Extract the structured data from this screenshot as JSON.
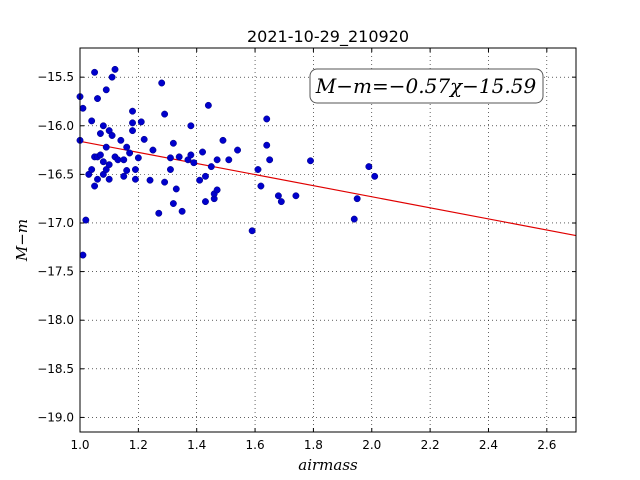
{
  "chart_data": {
    "type": "scatter",
    "title": "2021-10-29_210920",
    "xlabel": "airmass",
    "ylabel": "M−m",
    "xlim": [
      1.0,
      2.7
    ],
    "ylim": [
      -19.15,
      -15.2
    ],
    "y_inverted": true,
    "grid": true,
    "x_ticks": [
      1.0,
      1.2,
      1.4,
      1.6,
      1.8,
      2.0,
      2.2,
      2.4,
      2.6
    ],
    "x_tick_labels": [
      "1.0",
      "1.2",
      "1.4",
      "1.6",
      "1.8",
      "2.0",
      "2.2",
      "2.4",
      "2.6"
    ],
    "y_ticks": [
      -15.5,
      -16.0,
      -16.5,
      -17.0,
      -17.5,
      -18.0,
      -18.5,
      -19.0
    ],
    "y_tick_labels": [
      "−15.5",
      "−16.0",
      "−16.5",
      "−17.0",
      "−17.5",
      "−18.0",
      "−18.5",
      "−19.0"
    ],
    "annotation": "M−m=−0.57χ−15.59",
    "fit": {
      "slope": -0.57,
      "intercept": -15.59,
      "color": "#e00000"
    },
    "point_color": "#0000cc",
    "points": [
      [
        1.0,
        -15.7
      ],
      [
        1.0,
        -16.15
      ],
      [
        1.01,
        -15.82
      ],
      [
        1.01,
        -17.33
      ],
      [
        1.02,
        -16.97
      ],
      [
        1.03,
        -16.5
      ],
      [
        1.04,
        -15.95
      ],
      [
        1.04,
        -16.45
      ],
      [
        1.05,
        -16.32
      ],
      [
        1.05,
        -16.62
      ],
      [
        1.05,
        -15.45
      ],
      [
        1.06,
        -16.32
      ],
      [
        1.06,
        -16.55
      ],
      [
        1.06,
        -15.72
      ],
      [
        1.07,
        -16.08
      ],
      [
        1.07,
        -16.3
      ],
      [
        1.08,
        -16.37
      ],
      [
        1.08,
        -16.5
      ],
      [
        1.08,
        -16.0
      ],
      [
        1.09,
        -15.63
      ],
      [
        1.09,
        -16.45
      ],
      [
        1.09,
        -16.22
      ],
      [
        1.1,
        -16.05
      ],
      [
        1.1,
        -16.4
      ],
      [
        1.1,
        -16.55
      ],
      [
        1.11,
        -15.5
      ],
      [
        1.11,
        -16.1
      ],
      [
        1.12,
        -15.42
      ],
      [
        1.12,
        -16.32
      ],
      [
        1.13,
        -16.35
      ],
      [
        1.14,
        -16.15
      ],
      [
        1.15,
        -16.35
      ],
      [
        1.15,
        -16.52
      ],
      [
        1.16,
        -16.22
      ],
      [
        1.16,
        -16.46
      ],
      [
        1.17,
        -16.28
      ],
      [
        1.18,
        -15.85
      ],
      [
        1.18,
        -15.97
      ],
      [
        1.18,
        -16.05
      ],
      [
        1.19,
        -16.55
      ],
      [
        1.19,
        -16.45
      ],
      [
        1.2,
        -16.33
      ],
      [
        1.21,
        -15.96
      ],
      [
        1.22,
        -16.14
      ],
      [
        1.24,
        -16.56
      ],
      [
        1.25,
        -16.25
      ],
      [
        1.27,
        -16.9
      ],
      [
        1.28,
        -15.56
      ],
      [
        1.29,
        -16.58
      ],
      [
        1.29,
        -15.88
      ],
      [
        1.31,
        -16.45
      ],
      [
        1.31,
        -16.33
      ],
      [
        1.32,
        -16.8
      ],
      [
        1.32,
        -16.18
      ],
      [
        1.33,
        -16.65
      ],
      [
        1.34,
        -16.32
      ],
      [
        1.35,
        -16.88
      ],
      [
        1.37,
        -16.35
      ],
      [
        1.38,
        -16.3
      ],
      [
        1.38,
        -16.0
      ],
      [
        1.39,
        -16.38
      ],
      [
        1.41,
        -16.56
      ],
      [
        1.42,
        -16.27
      ],
      [
        1.43,
        -16.78
      ],
      [
        1.43,
        -16.52
      ],
      [
        1.44,
        -15.79
      ],
      [
        1.45,
        -16.42
      ],
      [
        1.46,
        -16.75
      ],
      [
        1.46,
        -16.7
      ],
      [
        1.47,
        -16.66
      ],
      [
        1.47,
        -16.35
      ],
      [
        1.49,
        -16.15
      ],
      [
        1.51,
        -16.35
      ],
      [
        1.54,
        -16.25
      ],
      [
        1.59,
        -17.08
      ],
      [
        1.61,
        -16.45
      ],
      [
        1.62,
        -16.62
      ],
      [
        1.64,
        -15.93
      ],
      [
        1.64,
        -16.2
      ],
      [
        1.65,
        -16.35
      ],
      [
        1.68,
        -16.72
      ],
      [
        1.69,
        -16.78
      ],
      [
        1.74,
        -16.72
      ],
      [
        1.79,
        -16.36
      ],
      [
        1.94,
        -16.96
      ],
      [
        1.95,
        -16.75
      ],
      [
        1.99,
        -16.42
      ],
      [
        2.01,
        -16.52
      ]
    ]
  }
}
